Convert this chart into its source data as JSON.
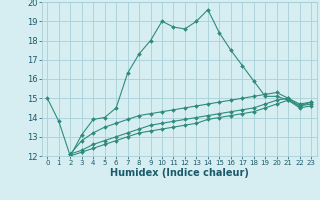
{
  "xlabel": "Humidex (Indice chaleur)",
  "x_values": [
    0,
    1,
    2,
    3,
    4,
    5,
    6,
    7,
    8,
    9,
    10,
    11,
    12,
    13,
    14,
    15,
    16,
    17,
    18,
    19,
    20,
    21,
    22,
    23
  ],
  "line1": [
    15.0,
    13.8,
    12.0,
    13.1,
    13.9,
    14.0,
    14.5,
    16.3,
    17.3,
    18.0,
    19.0,
    18.7,
    18.6,
    19.0,
    19.6,
    18.4,
    17.5,
    16.7,
    15.9,
    15.1,
    15.1,
    14.9,
    14.6,
    14.8
  ],
  "line2": [
    null,
    null,
    12.1,
    12.3,
    12.6,
    12.8,
    13.0,
    13.2,
    13.4,
    13.6,
    13.7,
    13.8,
    13.9,
    14.0,
    14.1,
    14.2,
    14.3,
    14.4,
    14.5,
    14.7,
    14.9,
    15.0,
    14.6,
    14.7
  ],
  "line3": [
    null,
    null,
    12.0,
    12.2,
    12.4,
    12.6,
    12.8,
    13.0,
    13.2,
    13.3,
    13.4,
    13.5,
    13.6,
    13.7,
    13.9,
    14.0,
    14.1,
    14.2,
    14.3,
    14.5,
    14.7,
    14.9,
    14.5,
    14.6
  ],
  "line4": [
    null,
    null,
    12.1,
    12.8,
    13.2,
    13.5,
    13.7,
    13.9,
    14.1,
    14.2,
    14.3,
    14.4,
    14.5,
    14.6,
    14.7,
    14.8,
    14.9,
    15.0,
    15.1,
    15.2,
    15.3,
    15.0,
    14.7,
    14.8
  ],
  "line_color": "#2e8b7a",
  "bg_color": "#d6eef2",
  "grid_color": "#a8cfd8",
  "ylim": [
    12,
    20
  ],
  "yticks": [
    12,
    13,
    14,
    15,
    16,
    17,
    18,
    19,
    20
  ],
  "tick_color": "#1a5a6a",
  "label_color": "#1a5a6a"
}
